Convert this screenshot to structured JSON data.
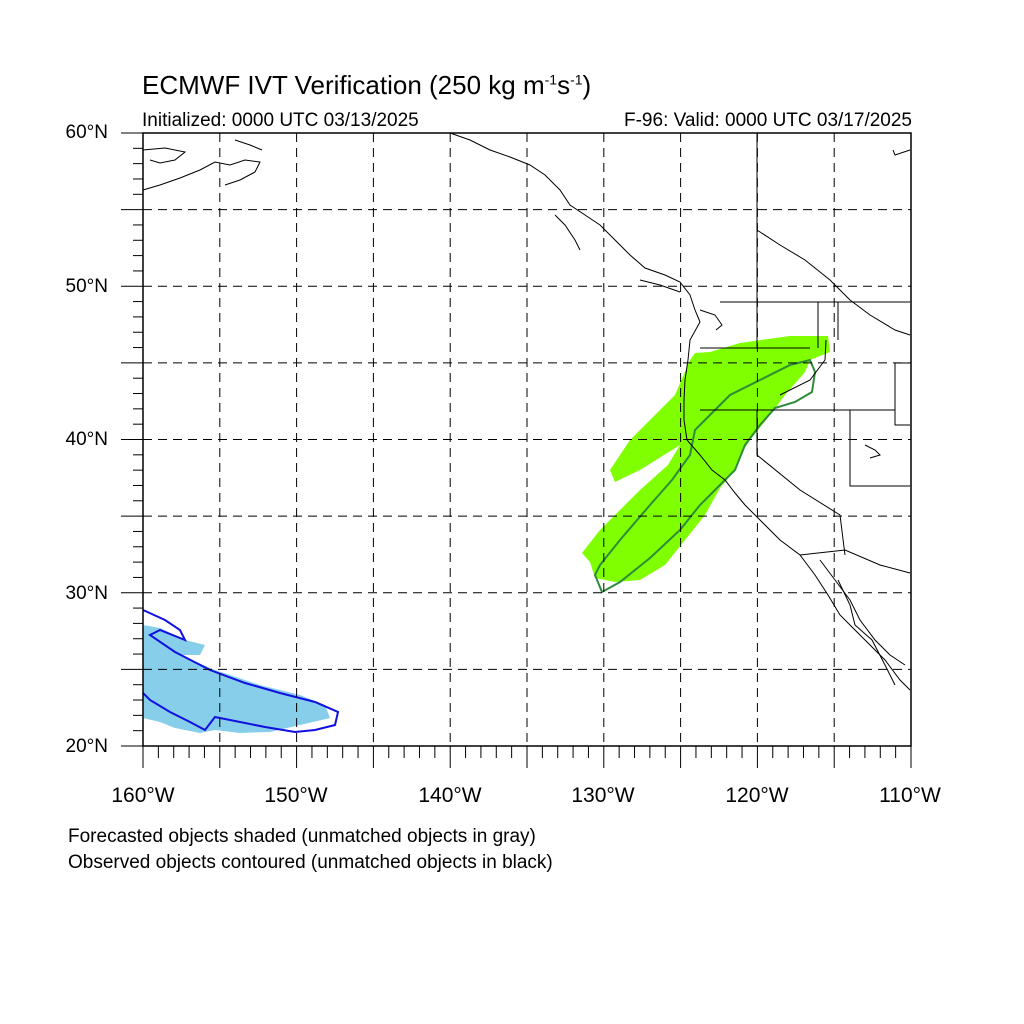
{
  "title": {
    "text": "ECMWF IVT Verification (250 kg m",
    "sup1": "-1",
    "mid": "s",
    "sup2": "-1",
    "end": ")"
  },
  "init_label": "Initialized: 0000 UTC 03/13/2025",
  "valid_label": "F-96: Valid: 0000 UTC 03/17/2025",
  "lat_labels": [
    "60°N",
    "50°N",
    "40°N",
    "30°N",
    "20°N"
  ],
  "lon_labels": [
    "160°W",
    "150°W",
    "140°W",
    "130°W",
    "120°W",
    "110°W"
  ],
  "legend": {
    "forecast_note": "Forecasted objects shaded (unmatched objects in gray)",
    "observed_note": "Observed objects contoured (unmatched objects in black)"
  },
  "colors": {
    "forecast_green": "#7fff00",
    "observed_green": "#2e8b3a",
    "forecast_blue": "#87ceeb",
    "observed_blue": "#1010e0",
    "coast": "#000000",
    "grid": "#000000"
  },
  "map": {
    "lat_range": [
      20,
      60
    ],
    "lon_range": [
      -160,
      -110
    ],
    "gridline_style": "dashed"
  }
}
